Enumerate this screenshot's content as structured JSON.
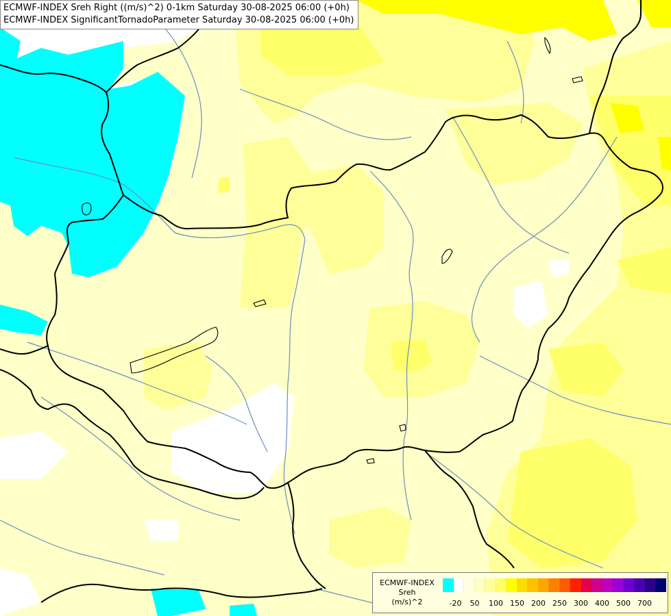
{
  "title_lines": [
    "ECMWF-INDEX Sreh Right ((m/s)^2) 0-1km Saturday 30-08-2025 06:00 (+0h)",
    "ECMWF-INDEX SignificantTornadoParameter Saturday 30-08-2025 06:00 (+0h)"
  ],
  "legend": {
    "title_lines": [
      "ECMWF-INDEX",
      "Sreh",
      "(m/s)^2"
    ],
    "colors": [
      "#00ffff",
      "#ffffff",
      "#ffffe0",
      "#ffffc0",
      "#ffff9a",
      "#ffff6a",
      "#ffff00",
      "#ffdc00",
      "#ffc000",
      "#ffa500",
      "#ff8000",
      "#ff5a00",
      "#ff2000",
      "#e6004c",
      "#d0008a",
      "#c000c0",
      "#9a00d8",
      "#7000d0",
      "#4a00b0",
      "#2a008a",
      "#000070"
    ],
    "tick_labels": [
      "-20",
      "50",
      "100",
      "150",
      "200",
      "250",
      "300",
      "400",
      "500",
      "700"
    ],
    "tick_positions": [
      1,
      3,
      5,
      7,
      9,
      11,
      13,
      15,
      17,
      19
    ]
  }
}
